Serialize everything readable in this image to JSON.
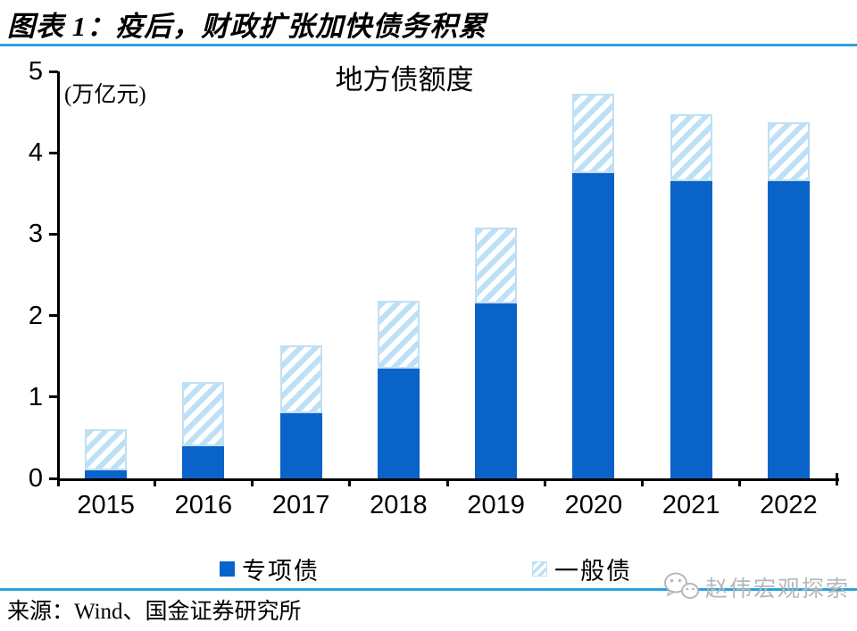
{
  "header": {
    "title": "图表 1：疫后，财政扩张加快债务积累"
  },
  "chart_data": {
    "type": "bar",
    "stacked": true,
    "title": "地方债额度",
    "unit_label": "(万亿元)",
    "categories": [
      "2015",
      "2016",
      "2017",
      "2018",
      "2019",
      "2020",
      "2021",
      "2022"
    ],
    "series": [
      {
        "name": "专项债",
        "style": "solid",
        "color": "#0A63C8",
        "values": [
          0.1,
          0.4,
          0.8,
          1.35,
          2.15,
          3.75,
          3.65,
          3.65
        ]
      },
      {
        "name": "一般债",
        "style": "hatched",
        "color": "#BEE0F6",
        "values": [
          0.5,
          0.78,
          0.83,
          0.83,
          0.93,
          0.98,
          0.82,
          0.72
        ]
      }
    ],
    "totals": [
      0.6,
      1.18,
      1.63,
      2.18,
      3.08,
      4.73,
      4.47,
      4.37
    ],
    "ylim": [
      0,
      5
    ],
    "y_ticks": [
      0,
      1,
      2,
      3,
      4,
      5
    ],
    "grid": false,
    "legend_position": "bottom"
  },
  "footer": {
    "source": "来源：Wind、国金证券研究所",
    "watermark": "赵伟宏观探索"
  },
  "colors": {
    "bar_solid": "#0A63C8",
    "hatch_stripe": "#BEE0F6",
    "hatch_border": "#BFE0F5",
    "divider_blue": "#2BA1DC",
    "axis_black": "#000000",
    "watermark_gray": "#B5B8BB"
  }
}
